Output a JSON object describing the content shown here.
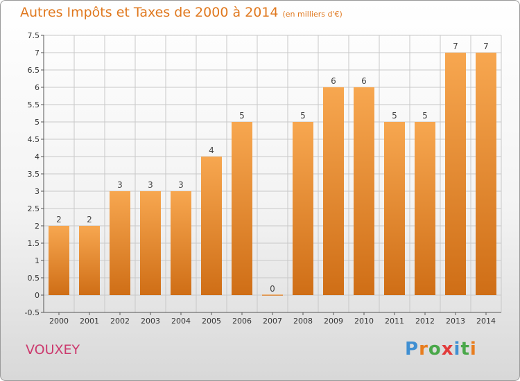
{
  "header": {
    "title": "Autres Impôts et Taxes de 2000 à 2014",
    "unit": "(en milliers d'€)"
  },
  "footer": {
    "place": "VOUXEY",
    "logo_letters": [
      "P",
      "r",
      "o",
      "x",
      "i",
      "t",
      "i"
    ],
    "logo_colors": [
      "#3f8fd2",
      "#e87d1e",
      "#4aa84a",
      "#e23b3b",
      "#3f8fd2",
      "#4aa84a",
      "#e87d1e"
    ]
  },
  "colors": {
    "bar_top": "#f7a750",
    "bar_bottom": "#cf6e16",
    "grid": "#c8c8c8",
    "axis": "#555555"
  },
  "chart_data": {
    "type": "bar",
    "categories": [
      "2000",
      "2001",
      "2002",
      "2003",
      "2004",
      "2005",
      "2006",
      "2007",
      "2008",
      "2009",
      "2010",
      "2011",
      "2012",
      "2013",
      "2014"
    ],
    "values": [
      2,
      2,
      3,
      3,
      3,
      4,
      5,
      0,
      5,
      6,
      6,
      5,
      5,
      7,
      7
    ],
    "value_labels": [
      "2",
      "2",
      "3",
      "3",
      "3",
      "4",
      "5",
      "0",
      "5",
      "6",
      "6",
      "5",
      "5",
      "7",
      "7"
    ],
    "ylim": [
      -0.5,
      7.5
    ],
    "yticks": [
      -0.5,
      0,
      0.5,
      1,
      1.5,
      2,
      2.5,
      3,
      3.5,
      4,
      4.5,
      5,
      5.5,
      6,
      6.5,
      7,
      7.5
    ],
    "ytick_labels": [
      "-0.5",
      "0",
      "0.5",
      "1",
      "1.5",
      "2",
      "2.5",
      "3",
      "3.5",
      "4",
      "4.5",
      "5",
      "5.5",
      "6",
      "6.5",
      "7",
      "7.5"
    ],
    "grid": true,
    "legend": false
  }
}
